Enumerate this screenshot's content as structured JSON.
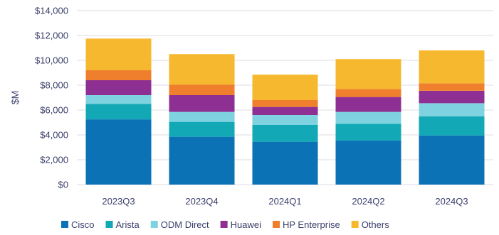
{
  "chart_data": {
    "type": "bar",
    "stacked": true,
    "title": "",
    "xlabel": "",
    "ylabel": "$M",
    "ylim": [
      0,
      14000
    ],
    "y_ticks": [
      0,
      2000,
      4000,
      6000,
      8000,
      10000,
      12000,
      14000
    ],
    "y_tick_labels": [
      "$0",
      "$2,000",
      "$4,000",
      "$6,000",
      "$8,000",
      "$10,000",
      "$12,000",
      "$14,000"
    ],
    "grid": true,
    "legend_position": "bottom",
    "categories": [
      "2023Q3",
      "2023Q4",
      "2024Q1",
      "2024Q2",
      "2024Q3"
    ],
    "series": [
      {
        "name": "Cisco",
        "color": "#0b72b5",
        "values": [
          5250,
          3850,
          3450,
          3550,
          3950
        ]
      },
      {
        "name": "Arista",
        "color": "#13a8b5",
        "values": [
          1250,
          1200,
          1350,
          1350,
          1550
        ]
      },
      {
        "name": "ODM Direct",
        "color": "#7fd3e0",
        "values": [
          700,
          800,
          800,
          950,
          1050
        ]
      },
      {
        "name": "Huawei",
        "color": "#8e2f93",
        "values": [
          1200,
          1350,
          650,
          1200,
          1000
        ]
      },
      {
        "name": "HP Enterprise",
        "color": "#f07f2d",
        "values": [
          800,
          850,
          550,
          650,
          600
        ]
      },
      {
        "name": "Others",
        "color": "#f5b82e",
        "values": [
          2550,
          2450,
          2050,
          2400,
          2650
        ]
      }
    ]
  }
}
